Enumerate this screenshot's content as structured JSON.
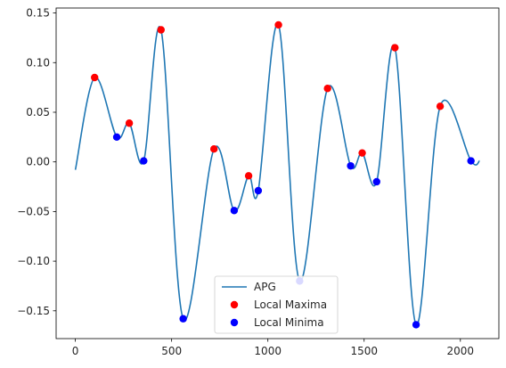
{
  "chart_data": {
    "type": "line",
    "title": "",
    "xlabel": "",
    "ylabel": "",
    "xlim": [
      -100,
      2200
    ],
    "ylim": [
      -0.178,
      0.155
    ],
    "x_ticks": [
      0,
      500,
      1000,
      1500,
      2000
    ],
    "x_tick_labels": [
      "0",
      "500",
      "1000",
      "1500",
      "2000"
    ],
    "y_ticks": [
      0.15,
      0.1,
      0.05,
      0.0,
      -0.05,
      -0.1,
      -0.15
    ],
    "y_tick_labels": [
      "0.15",
      "0.10",
      "0.05",
      "0.00",
      "−0.05",
      "−0.10",
      "−0.15"
    ],
    "grid": false,
    "legend_position": "lower-center",
    "series": [
      {
        "name": "APG",
        "kind": "line",
        "color": "#1f77b4",
        "x": [
          0,
          100,
          215,
          280,
          355,
          445,
          560,
          720,
          825,
          900,
          950,
          1055,
          1165,
          1310,
          1430,
          1490,
          1565,
          1660,
          1770,
          1895,
          2055,
          2100
        ],
        "y": [
          -0.008,
          0.085,
          0.025,
          0.039,
          0.001,
          0.133,
          -0.158,
          0.013,
          -0.049,
          -0.014,
          -0.029,
          0.138,
          -0.12,
          0.074,
          -0.004,
          0.009,
          -0.02,
          0.115,
          -0.164,
          0.056,
          0.001,
          0.001
        ]
      },
      {
        "name": "Local Maxima",
        "kind": "markers",
        "color": "#ff0000",
        "x": [
          100,
          280,
          445,
          720,
          900,
          1055,
          1310,
          1490,
          1660,
          1895
        ],
        "y": [
          0.085,
          0.039,
          0.133,
          0.013,
          -0.014,
          0.138,
          0.074,
          0.009,
          0.115,
          0.056
        ]
      },
      {
        "name": "Local Minima",
        "kind": "markers",
        "color": "#0000ff",
        "x": [
          215,
          355,
          560,
          825,
          950,
          1165,
          1430,
          1565,
          1770,
          2055
        ],
        "y": [
          0.025,
          0.001,
          -0.158,
          -0.049,
          -0.029,
          -0.12,
          -0.004,
          -0.02,
          -0.164,
          0.001
        ]
      }
    ]
  }
}
